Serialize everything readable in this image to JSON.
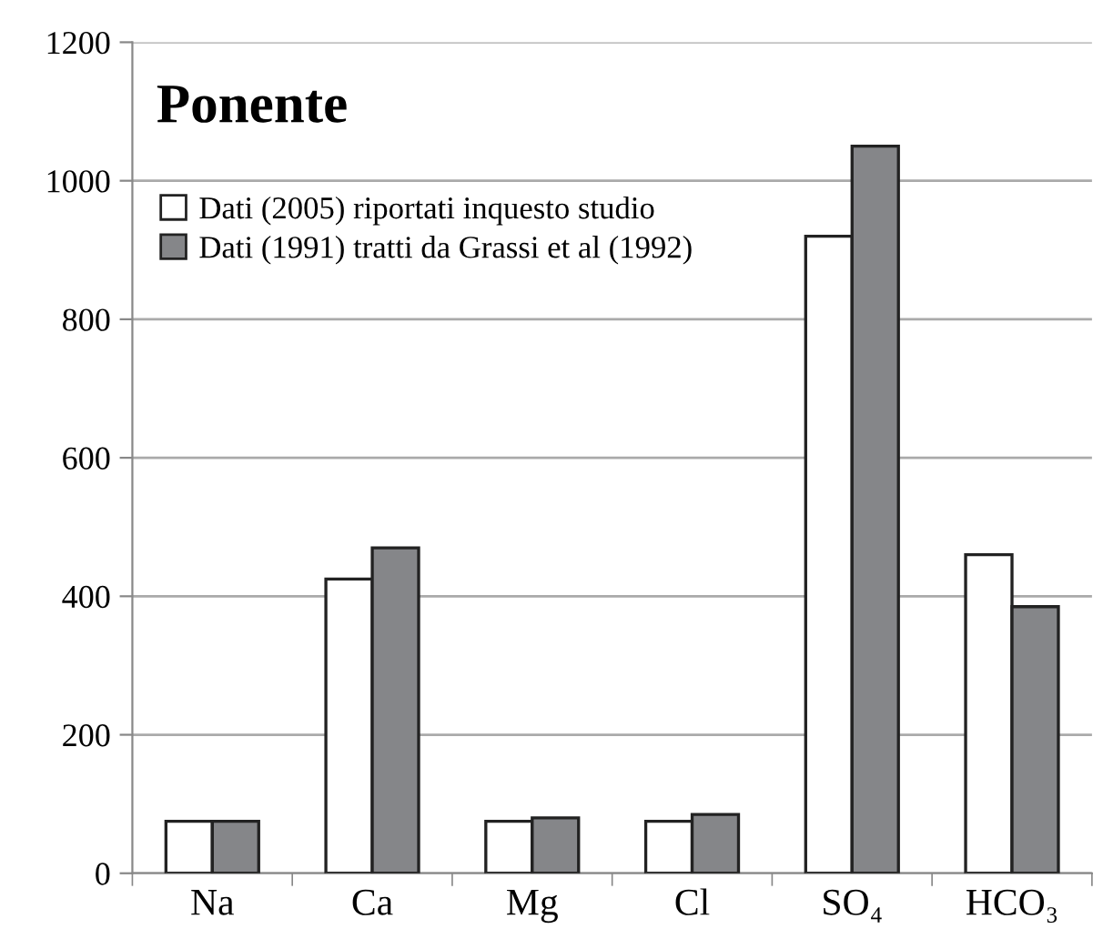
{
  "chart_data": {
    "type": "bar",
    "title": "Ponente",
    "categories": [
      "Na",
      "Ca",
      "Mg",
      "Cl",
      "SO₄",
      "HCO₃"
    ],
    "series": [
      {
        "name": "Dati (2005) riportati inquesto studio",
        "color": "#ffffff",
        "values": [
          75,
          425,
          75,
          75,
          920,
          460
        ]
      },
      {
        "name": "Dati (1991) tratti da Grassi et al (1992)",
        "color": "#858689",
        "values": [
          75,
          470,
          80,
          85,
          1050,
          385
        ]
      }
    ],
    "ylim": [
      0,
      1200
    ],
    "yticks": [
      0,
      200,
      400,
      600,
      800,
      1000,
      1200
    ],
    "grid": "y",
    "legend": "top left"
  }
}
